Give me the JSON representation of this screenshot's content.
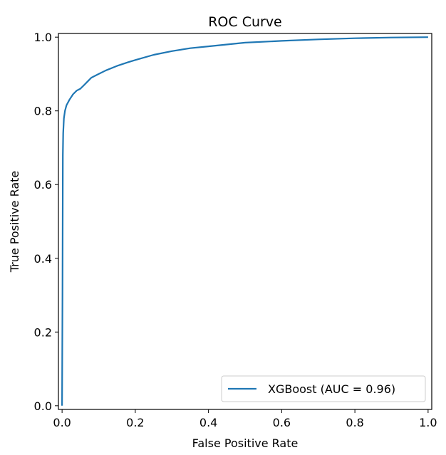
{
  "chart_data": {
    "type": "line",
    "title": "ROC Curve",
    "xlabel": "False Positive Rate",
    "ylabel": "True Positive Rate",
    "xlim": [
      -0.01,
      1.01
    ],
    "ylim": [
      -0.01,
      1.01
    ],
    "xticks": [
      "0.0",
      "0.2",
      "0.4",
      "0.6",
      "0.8",
      "1.0"
    ],
    "yticks": [
      "0.0",
      "0.2",
      "0.4",
      "0.6",
      "0.8",
      "1.0"
    ],
    "grid": false,
    "legend_placement": "lower-right",
    "series": [
      {
        "name": "XGBoost (AUC = 0.96)",
        "color": "#1f77b4",
        "x": [
          0,
          0.001,
          0.002,
          0.003,
          0.005,
          0.008,
          0.012,
          0.02,
          0.03,
          0.04,
          0.05,
          0.06,
          0.07,
          0.08,
          0.1,
          0.12,
          0.15,
          0.18,
          0.2,
          0.25,
          0.3,
          0.35,
          0.4,
          0.45,
          0.5,
          0.6,
          0.7,
          0.8,
          0.9,
          1.0
        ],
        "y": [
          0,
          0.3,
          0.68,
          0.74,
          0.78,
          0.8,
          0.815,
          0.83,
          0.845,
          0.855,
          0.86,
          0.87,
          0.88,
          0.89,
          0.9,
          0.91,
          0.922,
          0.932,
          0.938,
          0.952,
          0.962,
          0.97,
          0.975,
          0.98,
          0.985,
          0.99,
          0.994,
          0.997,
          0.999,
          1.0
        ]
      }
    ]
  }
}
